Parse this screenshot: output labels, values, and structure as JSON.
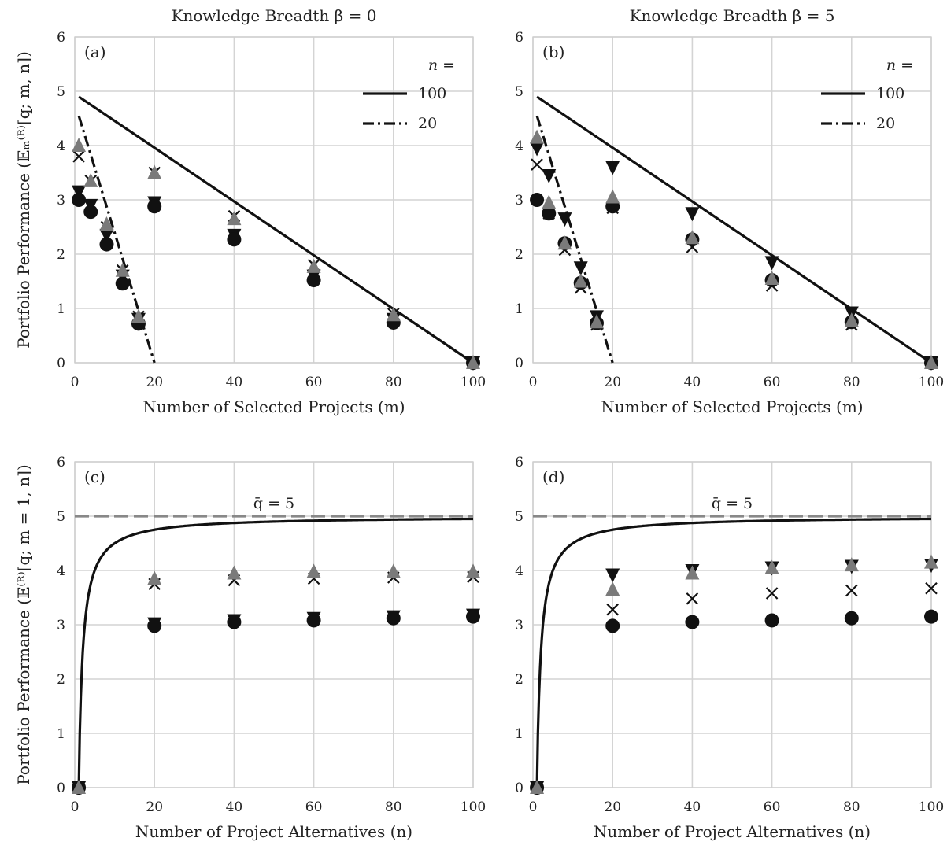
{
  "figure": {
    "ylabel_top": "Portfolio Performance (𝔼ₘ⁽ᴿ⁾[q; m, n])",
    "ylabel_bottom": "Portfolio Performance (𝔼⁽ᴿ⁾[q; m = 1, n])"
  },
  "chart_data": [
    {
      "type": "line",
      "tag": "(a)",
      "title": "Knowledge Breadth β = 0",
      "xlabel": "Number of Selected Projects (m)",
      "ylabel": "Portfolio Performance (𝔼ₘ⁽ᴿ⁾[q; m, n])",
      "xlim": [
        0,
        100
      ],
      "ylim": [
        0,
        6
      ],
      "xticks": [
        0,
        20,
        40,
        60,
        80,
        100
      ],
      "yticks": [
        0,
        1,
        2,
        3,
        4,
        5,
        6
      ],
      "grid": true,
      "legend": {
        "title": "n =",
        "placement": "top-right",
        "entries": [
          "100",
          "20"
        ]
      },
      "lines": [
        {
          "name": "100",
          "style": "solid",
          "x": [
            1,
            100
          ],
          "y": [
            4.9,
            0.0
          ]
        },
        {
          "name": "20",
          "style": "dashdot",
          "x": [
            1,
            20
          ],
          "y": [
            4.55,
            0.0
          ]
        }
      ],
      "markers": [
        {
          "marker": "triangle-down",
          "color": "#111111",
          "x": [
            1,
            4,
            8,
            12,
            16,
            20,
            40,
            60,
            80,
            100
          ],
          "y": [
            3.15,
            2.9,
            2.35,
            1.6,
            0.8,
            2.95,
            2.35,
            1.6,
            0.8,
            0.0
          ]
        },
        {
          "marker": "circle",
          "color": "#111111",
          "x": [
            1,
            4,
            8,
            12,
            16,
            20,
            40,
            60,
            80,
            100
          ],
          "y": [
            3.0,
            2.78,
            2.18,
            1.46,
            0.72,
            2.88,
            2.27,
            1.52,
            0.74,
            0.0
          ]
        },
        {
          "marker": "x",
          "color": "#111111",
          "x": [
            1,
            4,
            8,
            12,
            16,
            20,
            40,
            60,
            80,
            100
          ],
          "y": [
            3.8,
            3.35,
            2.5,
            1.7,
            0.85,
            3.5,
            2.7,
            1.8,
            0.9,
            0.0
          ]
        },
        {
          "marker": "triangle-up",
          "color": "#7a7a7a",
          "x": [
            1,
            4,
            8,
            12,
            16,
            20,
            40,
            60,
            80,
            100
          ],
          "y": [
            4.0,
            3.35,
            2.55,
            1.7,
            0.85,
            3.5,
            2.65,
            1.77,
            0.88,
            0.0
          ]
        }
      ]
    },
    {
      "type": "line",
      "tag": "(b)",
      "title": "Knowledge Breadth β = 5",
      "xlabel": "Number of Selected Projects (m)",
      "ylabel": "",
      "xlim": [
        0,
        100
      ],
      "ylim": [
        0,
        6
      ],
      "xticks": [
        0,
        20,
        40,
        60,
        80,
        100
      ],
      "yticks": [
        0,
        1,
        2,
        3,
        4,
        5,
        6
      ],
      "grid": true,
      "legend": {
        "title": "n =",
        "placement": "top-right",
        "entries": [
          "100",
          "20"
        ]
      },
      "lines": [
        {
          "name": "100",
          "style": "solid",
          "x": [
            1,
            100
          ],
          "y": [
            4.9,
            0.0
          ]
        },
        {
          "name": "20",
          "style": "dashdot",
          "x": [
            1,
            20
          ],
          "y": [
            4.55,
            0.0
          ]
        }
      ],
      "markers": [
        {
          "marker": "circle",
          "color": "#111111",
          "x": [
            1,
            4,
            8,
            12,
            16,
            20,
            40,
            60,
            80,
            100
          ],
          "y": [
            3.0,
            2.75,
            2.2,
            1.47,
            0.73,
            2.88,
            2.27,
            1.52,
            0.75,
            0.0
          ]
        },
        {
          "marker": "x",
          "color": "#111111",
          "x": [
            1,
            4,
            8,
            12,
            16,
            20,
            40,
            60,
            80,
            100
          ],
          "y": [
            3.65,
            2.75,
            2.08,
            1.38,
            0.7,
            2.85,
            2.13,
            1.42,
            0.7,
            0.0
          ]
        },
        {
          "marker": "triangle-down",
          "color": "#111111",
          "x": [
            1,
            4,
            8,
            12,
            16,
            20,
            40,
            60,
            80,
            100
          ],
          "y": [
            3.95,
            3.45,
            2.65,
            1.75,
            0.85,
            3.6,
            2.75,
            1.85,
            0.92,
            0.0
          ]
        },
        {
          "marker": "triangle-up",
          "color": "#7a7a7a",
          "x": [
            1,
            4,
            8,
            12,
            16,
            20,
            40,
            60,
            80,
            100
          ],
          "y": [
            4.15,
            2.95,
            2.2,
            1.5,
            0.75,
            3.05,
            2.3,
            1.55,
            0.78,
            0.0
          ]
        }
      ]
    },
    {
      "type": "line",
      "tag": "(c)",
      "title": "",
      "xlabel": "Number of Project Alternatives (n)",
      "ylabel": "Portfolio Performance (𝔼⁽ᴿ⁾[q; m = 1, n])",
      "xlim": [
        0,
        100
      ],
      "ylim": [
        0,
        6
      ],
      "xticks": [
        0,
        20,
        40,
        60,
        80,
        100
      ],
      "yticks": [
        0,
        1,
        2,
        3,
        4,
        5,
        6
      ],
      "grid": true,
      "reference": {
        "label": "q̄ = 5",
        "y": 5,
        "style": "dashed",
        "color": "#888888"
      },
      "lines": [
        {
          "name": "",
          "style": "solid",
          "formula": "5*(1-1/n)",
          "x": [
            1,
            2,
            3,
            5,
            8,
            10,
            15,
            20,
            30,
            40,
            60,
            80,
            100
          ],
          "y": [
            0.0,
            2.5,
            3.33,
            4.0,
            4.38,
            4.5,
            4.67,
            4.75,
            4.83,
            4.88,
            4.92,
            4.94,
            4.95
          ]
        }
      ],
      "markers": [
        {
          "marker": "triangle-down",
          "color": "#111111",
          "x": [
            1,
            20,
            40,
            60,
            80,
            100
          ],
          "y": [
            0.0,
            3.02,
            3.08,
            3.12,
            3.15,
            3.18
          ]
        },
        {
          "marker": "circle",
          "color": "#111111",
          "x": [
            1,
            20,
            40,
            60,
            80,
            100
          ],
          "y": [
            0.0,
            2.98,
            3.05,
            3.08,
            3.12,
            3.15
          ]
        },
        {
          "marker": "x",
          "color": "#111111",
          "x": [
            1,
            20,
            40,
            60,
            80,
            100
          ],
          "y": [
            0.0,
            3.75,
            3.82,
            3.85,
            3.87,
            3.88
          ]
        },
        {
          "marker": "triangle-up",
          "color": "#7a7a7a",
          "x": [
            1,
            20,
            40,
            60,
            80,
            100
          ],
          "y": [
            0.0,
            3.85,
            3.95,
            3.98,
            3.98,
            3.98
          ]
        }
      ]
    },
    {
      "type": "line",
      "tag": "(d)",
      "title": "",
      "xlabel": "Number of Project Alternatives (n)",
      "ylabel": "",
      "xlim": [
        0,
        100
      ],
      "ylim": [
        0,
        6
      ],
      "xticks": [
        0,
        20,
        40,
        60,
        80,
        100
      ],
      "yticks": [
        0,
        1,
        2,
        3,
        4,
        5,
        6
      ],
      "grid": true,
      "reference": {
        "label": "q̄ = 5",
        "y": 5,
        "style": "dashed",
        "color": "#888888"
      },
      "lines": [
        {
          "name": "",
          "style": "solid",
          "formula": "5*(1-1/n)",
          "x": [
            1,
            2,
            3,
            5,
            8,
            10,
            15,
            20,
            30,
            40,
            60,
            80,
            100
          ],
          "y": [
            0.0,
            2.5,
            3.33,
            4.0,
            4.38,
            4.5,
            4.67,
            4.75,
            4.83,
            4.88,
            4.92,
            4.94,
            4.95
          ]
        }
      ],
      "markers": [
        {
          "marker": "circle",
          "color": "#111111",
          "x": [
            1,
            20,
            40,
            60,
            80,
            100
          ],
          "y": [
            0.0,
            2.98,
            3.05,
            3.08,
            3.12,
            3.15
          ]
        },
        {
          "marker": "x",
          "color": "#111111",
          "x": [
            1,
            20,
            40,
            60,
            80,
            100
          ],
          "y": [
            0.0,
            3.28,
            3.48,
            3.58,
            3.63,
            3.67
          ]
        },
        {
          "marker": "triangle-down",
          "color": "#111111",
          "x": [
            1,
            20,
            40,
            60,
            80,
            100
          ],
          "y": [
            0.0,
            3.92,
            4.0,
            4.05,
            4.08,
            4.1
          ]
        },
        {
          "marker": "triangle-up",
          "color": "#7a7a7a",
          "x": [
            1,
            20,
            40,
            60,
            80,
            100
          ],
          "y": [
            0.0,
            3.65,
            3.95,
            4.05,
            4.1,
            4.15
          ]
        }
      ]
    }
  ]
}
